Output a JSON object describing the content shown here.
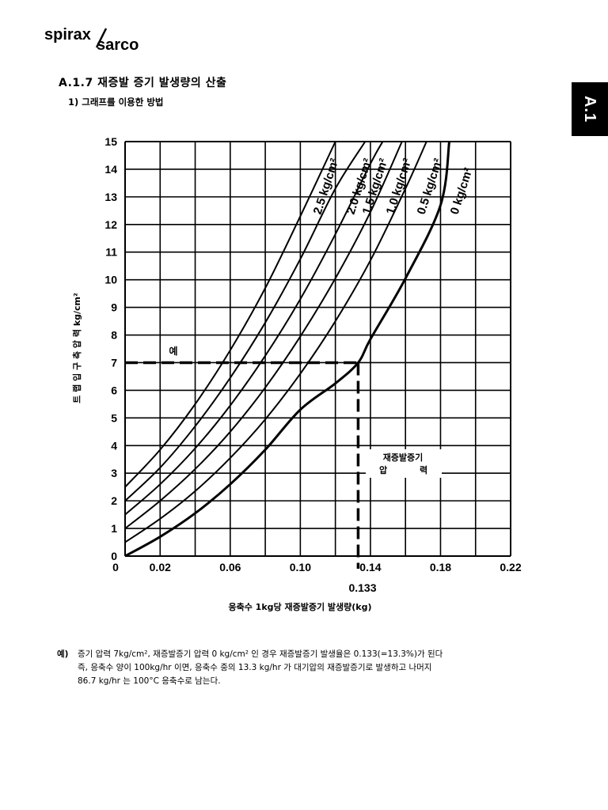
{
  "logo": {
    "word1": "spirax",
    "word2": "sarco"
  },
  "side_tab": "A.1",
  "section_title": "A.1.7  재증발 증기 발생량의 산출",
  "subsection_title": "1) 그래프를 이용한 방법",
  "example": {
    "label": "예)",
    "line1": "증기 압력 7kg/cm², 재증발증기 압력 0 kg/cm² 인 경우 재증발증기 발생율은 0.133(=13.3%)가 된다",
    "line2": "즉, 응축수 양이 100kg/hr 이면, 응축수 중의 13.3 kg/hr 가 대기압의 재증발증기로 발생하고 나머지",
    "line3": "86.7 kg/hr 는 100°C 응축수로 남는다."
  },
  "chart_data": {
    "type": "line",
    "xlabel": "응축수 1kg당 재증발증기 발생량(kg)",
    "ylabel": "트 랩 입 구 측 압 력  kg/cm²",
    "xlim": [
      0,
      0.22
    ],
    "ylim": [
      0,
      15
    ],
    "x_ticks": [
      "0",
      "0.02",
      "0.06",
      "0.10",
      "0.14",
      "0.18",
      "0.22"
    ],
    "x_tick_values": [
      0,
      0.02,
      0.06,
      0.1,
      0.14,
      0.18,
      0.22
    ],
    "y_ticks": [
      "0",
      "1",
      "2",
      "3",
      "4",
      "5",
      "6",
      "7",
      "8",
      "9",
      "10",
      "11",
      "12",
      "13",
      "14",
      "15"
    ],
    "grid": true,
    "series": [
      {
        "name": "2.5 kg/cm²",
        "x": [
          0,
          0.02,
          0.04,
          0.06,
          0.08,
          0.1,
          0.12
        ],
        "y": [
          2.5,
          3.85,
          5.5,
          7.45,
          9.7,
          12.3,
          15.0
        ]
      },
      {
        "name": "2.0 kg/cm²",
        "x": [
          0,
          0.02,
          0.04,
          0.06,
          0.08,
          0.1,
          0.12,
          0.137
        ],
        "y": [
          2.0,
          3.2,
          4.7,
          6.45,
          8.45,
          10.75,
          13.3,
          15.0
        ]
      },
      {
        "name": "1.5 kg/cm²",
        "x": [
          0,
          0.02,
          0.04,
          0.06,
          0.08,
          0.1,
          0.12,
          0.14,
          0.147
        ],
        "y": [
          1.5,
          2.6,
          3.9,
          5.45,
          7.25,
          9.3,
          11.65,
          14.2,
          15.0
        ]
      },
      {
        "name": "1.0 kg/cm²",
        "x": [
          0,
          0.02,
          0.04,
          0.06,
          0.08,
          0.1,
          0.12,
          0.14,
          0.158
        ],
        "y": [
          1.0,
          2.0,
          3.15,
          4.5,
          6.1,
          7.95,
          10.05,
          12.45,
          15.0
        ]
      },
      {
        "name": "0.5 kg/cm²",
        "x": [
          0,
          0.02,
          0.04,
          0.06,
          0.08,
          0.1,
          0.12,
          0.14,
          0.16,
          0.172
        ],
        "y": [
          0.5,
          1.35,
          2.35,
          3.55,
          4.95,
          6.6,
          8.5,
          10.7,
          13.3,
          15.0
        ]
      },
      {
        "name": "0  kg/cm²",
        "x": [
          0,
          0.02,
          0.04,
          0.06,
          0.08,
          0.1,
          0.12,
          0.133,
          0.14,
          0.16,
          0.18,
          0.185
        ],
        "y": [
          0,
          0.7,
          1.55,
          2.6,
          3.85,
          5.3,
          6.25,
          7.0,
          7.85,
          10.05,
          12.7,
          15.0
        ]
      }
    ],
    "example_path": {
      "y": 7,
      "x": 0.133,
      "x_label": "0.133"
    },
    "annotations": {
      "example_marker": "예",
      "flash_pressure_line1": "재증발증기",
      "flash_pressure_line2a": "압",
      "flash_pressure_line2b": "력"
    }
  }
}
